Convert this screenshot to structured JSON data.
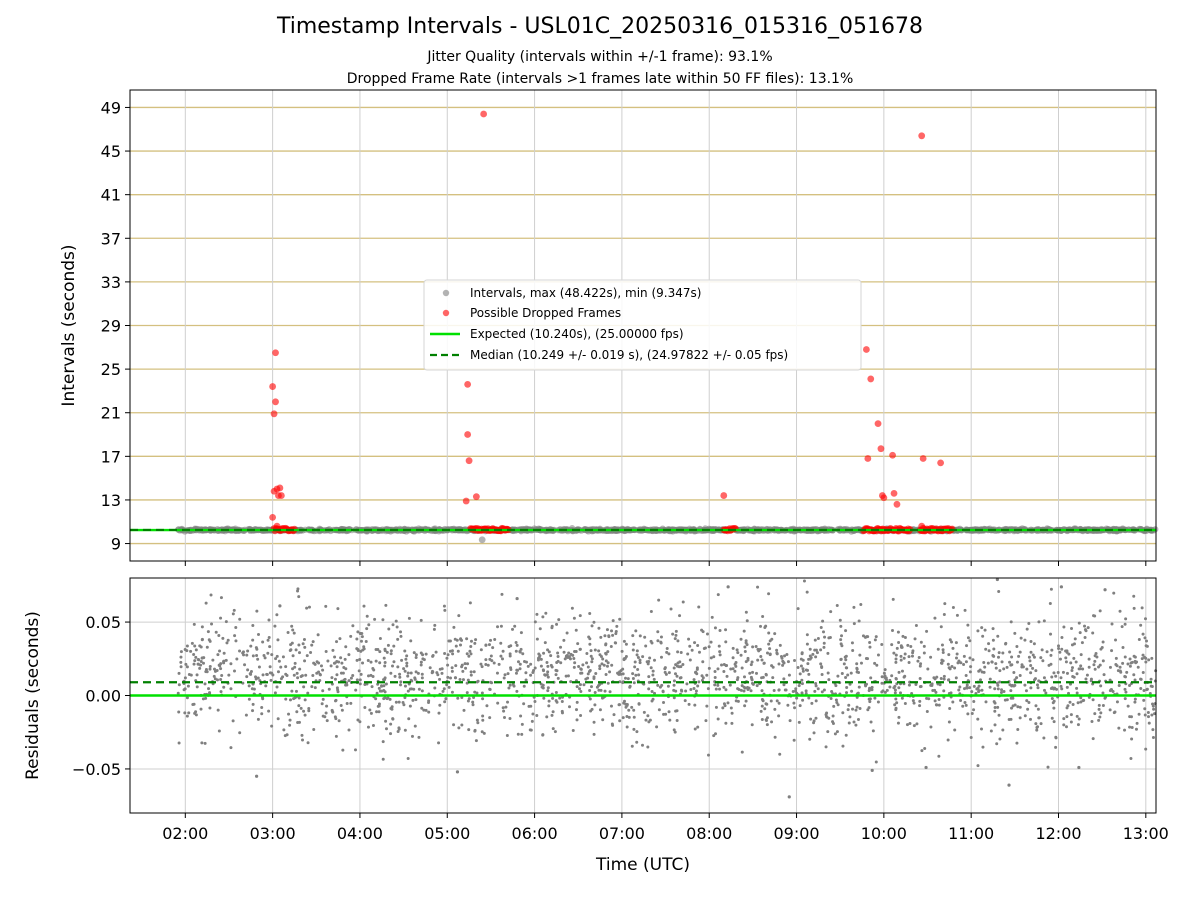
{
  "chart_data": [
    {
      "type": "scatter",
      "title": "Timestamp Intervals - USL01C_20250316_015316_051678",
      "subtitle_lines": [
        "Jitter Quality (intervals within +/-1 frame): 93.1%",
        "Dropped Frame Rate (intervals >1 frames late within 50 FF files): 13.1%"
      ],
      "xlabel": "",
      "ylabel": "Intervals (seconds)",
      "x_axis": "time_utc",
      "xlim": [
        "01:22",
        "13:07"
      ],
      "ylim": [
        7.4,
        50.6
      ],
      "yticks": [
        9,
        13,
        17,
        21,
        25,
        29,
        33,
        37,
        41,
        45,
        49
      ],
      "grid": true,
      "legend_position": "center",
      "series": [
        {
          "name": "Intervals, max (48.422s), min (9.347s)",
          "kind": "scatter",
          "color": "#808080",
          "note": "dense band of points near 10.24 s spanning the full time range",
          "x_range": [
            "01:55",
            "13:07"
          ],
          "y_center": 10.24,
          "points": [
            {
              "x": "05:24",
              "y": 9.35
            }
          ]
        },
        {
          "name": "Possible Dropped Frames",
          "kind": "scatter",
          "color": "#ff0000",
          "points": [
            {
              "x": "03:00",
              "y": 23.4
            },
            {
              "x": "03:01",
              "y": 20.9
            },
            {
              "x": "03:02",
              "y": 26.5
            },
            {
              "x": "03:02",
              "y": 22.0
            },
            {
              "x": "03:00",
              "y": 11.4
            },
            {
              "x": "03:01",
              "y": 13.8
            },
            {
              "x": "03:03",
              "y": 14.0
            },
            {
              "x": "03:04",
              "y": 13.4
            },
            {
              "x": "03:05",
              "y": 14.1
            },
            {
              "x": "03:06",
              "y": 13.4
            },
            {
              "x": "03:03",
              "y": 10.6
            },
            {
              "x": "03:05",
              "y": 10.3
            },
            {
              "x": "05:14",
              "y": 23.6
            },
            {
              "x": "05:14",
              "y": 19.0
            },
            {
              "x": "05:15",
              "y": 16.6
            },
            {
              "x": "05:13",
              "y": 12.9
            },
            {
              "x": "05:20",
              "y": 13.3
            },
            {
              "x": "05:25",
              "y": 48.4
            },
            {
              "x": "08:10",
              "y": 13.4
            },
            {
              "x": "09:48",
              "y": 26.8
            },
            {
              "x": "09:51",
              "y": 24.1
            },
            {
              "x": "09:49",
              "y": 16.8
            },
            {
              "x": "09:56",
              "y": 20.0
            },
            {
              "x": "09:58",
              "y": 17.7
            },
            {
              "x": "09:59",
              "y": 13.4
            },
            {
              "x": "10:00",
              "y": 13.2
            },
            {
              "x": "10:06",
              "y": 17.1
            },
            {
              "x": "10:07",
              "y": 13.6
            },
            {
              "x": "10:09",
              "y": 12.6
            },
            {
              "x": "10:26",
              "y": 46.4
            },
            {
              "x": "10:27",
              "y": 16.8
            },
            {
              "x": "10:39",
              "y": 16.4
            },
            {
              "x": "10:26",
              "y": 10.6
            },
            {
              "x": "10:27",
              "y": 10.4
            }
          ],
          "clusters_near_10_2s": [
            {
              "from": "03:01",
              "to": "03:15"
            },
            {
              "from": "05:16",
              "to": "05:42"
            },
            {
              "from": "08:10",
              "to": "08:18"
            },
            {
              "from": "09:46",
              "to": "10:18"
            },
            {
              "from": "10:25",
              "to": "10:47"
            }
          ]
        },
        {
          "name": "Expected (10.240s), (25.00000 fps)",
          "kind": "hline",
          "y": 10.24,
          "color": "#00e000",
          "style": "solid"
        },
        {
          "name": "Median (10.249 +/- 0.019 s), (24.97822 +/- 0.05 fps)",
          "kind": "hline",
          "y": 10.249,
          "color": "#008000",
          "style": "dashed"
        }
      ]
    },
    {
      "type": "scatter",
      "xlabel": "Time (UTC)",
      "ylabel": "Residuals (seconds)",
      "x_axis": "time_utc",
      "xlim": [
        "01:22",
        "13:07"
      ],
      "ylim": [
        -0.08,
        0.08
      ],
      "yticks": [
        {
          "value": 0.05,
          "label": "0.05"
        },
        {
          "value": 0.0,
          "label": "0.00"
        },
        {
          "value": -0.05,
          "label": "−0.05"
        }
      ],
      "xticks": [
        "02:00",
        "03:00",
        "04:00",
        "05:00",
        "06:00",
        "07:00",
        "08:00",
        "09:00",
        "10:00",
        "11:00",
        "12:00",
        "13:00"
      ],
      "grid": true,
      "series": [
        {
          "kind": "scatter",
          "color": "#808080",
          "note": "residual cloud spanning the time range, mostly within -0.04 to 0.06 s",
          "x_range": [
            "01:55",
            "13:07"
          ],
          "y_center": 0.013,
          "y_spread": 0.02,
          "approx_count": 2200,
          "outliers": [
            {
              "x": "02:49",
              "y": -0.055
            },
            {
              "x": "05:07",
              "y": -0.052
            },
            {
              "x": "08:55",
              "y": -0.069
            },
            {
              "x": "09:52",
              "y": -0.051
            },
            {
              "x": "10:29",
              "y": -0.049
            },
            {
              "x": "11:26",
              "y": -0.061
            },
            {
              "x": "12:14",
              "y": -0.049
            },
            {
              "x": "08:13",
              "y": 0.074
            },
            {
              "x": "11:18",
              "y": 0.079
            },
            {
              "x": "12:02",
              "y": 0.074
            },
            {
              "x": "12:32",
              "y": 0.072
            },
            {
              "x": "05:48",
              "y": 0.066
            },
            {
              "x": "03:05",
              "y": 0.061
            }
          ]
        },
        {
          "kind": "hline",
          "y": 0.0,
          "color": "#00e000",
          "style": "solid"
        },
        {
          "kind": "hline",
          "y": 0.009,
          "color": "#008000",
          "style": "dashed"
        }
      ]
    }
  ]
}
